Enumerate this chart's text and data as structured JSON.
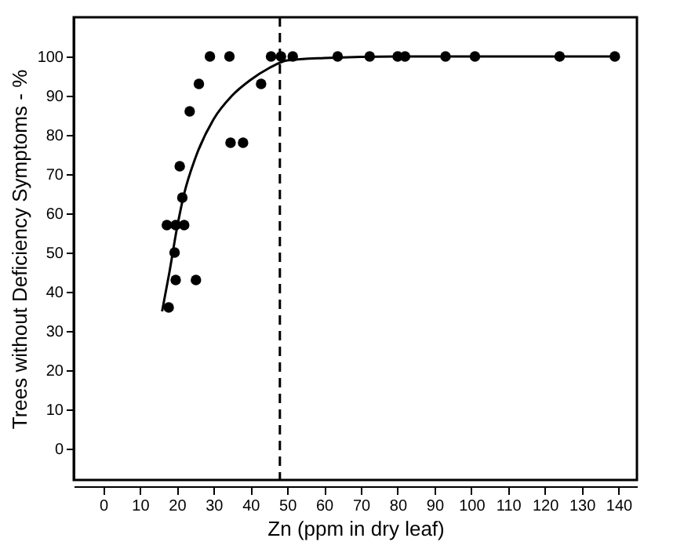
{
  "chart_data": {
    "type": "scatter",
    "xlabel": "Zn (ppm in dry leaf)",
    "ylabel": "Trees without Deficiency Symptoms - %",
    "xlim": [
      -8,
      145
    ],
    "ylim": [
      -8,
      110
    ],
    "xticks": [
      0,
      10,
      20,
      30,
      40,
      50,
      60,
      70,
      80,
      90,
      100,
      110,
      120,
      130,
      140
    ],
    "yticks": [
      0,
      10,
      20,
      30,
      40,
      50,
      60,
      70,
      80,
      90,
      100
    ],
    "grid": false,
    "marker": "circle",
    "series": [
      {
        "color": "#000000",
        "x": [
          17.8,
          19.7,
          25.2,
          19.4,
          17.3,
          19.7,
          22,
          21.5,
          20.8,
          23.5,
          26,
          34.6,
          38,
          42.9,
          29,
          34.3,
          45.6,
          48.3,
          51.5,
          63.7,
          72.4,
          80,
          82,
          93,
          101,
          124,
          139
        ],
        "values": [
          36,
          43,
          43,
          50,
          57,
          57,
          57,
          64,
          72,
          86,
          93,
          78,
          78,
          93,
          100,
          100,
          100,
          100,
          100,
          100,
          100,
          100,
          100,
          100,
          100,
          100,
          100
        ]
      },
      {
        "type": "line",
        "color": "#000000",
        "line_style": "solid",
        "marker": "none",
        "x": [
          16,
          18,
          20,
          22,
          25,
          30,
          35,
          40,
          45,
          50,
          60,
          80,
          140
        ],
        "values": [
          35,
          45,
          56,
          65,
          74,
          84,
          90,
          94,
          97,
          99,
          99.6,
          100,
          100
        ]
      }
    ],
    "ref_lines": [
      {
        "axis": "x",
        "value": 48,
        "color": "#000000",
        "line_style": "dashed"
      }
    ]
  }
}
